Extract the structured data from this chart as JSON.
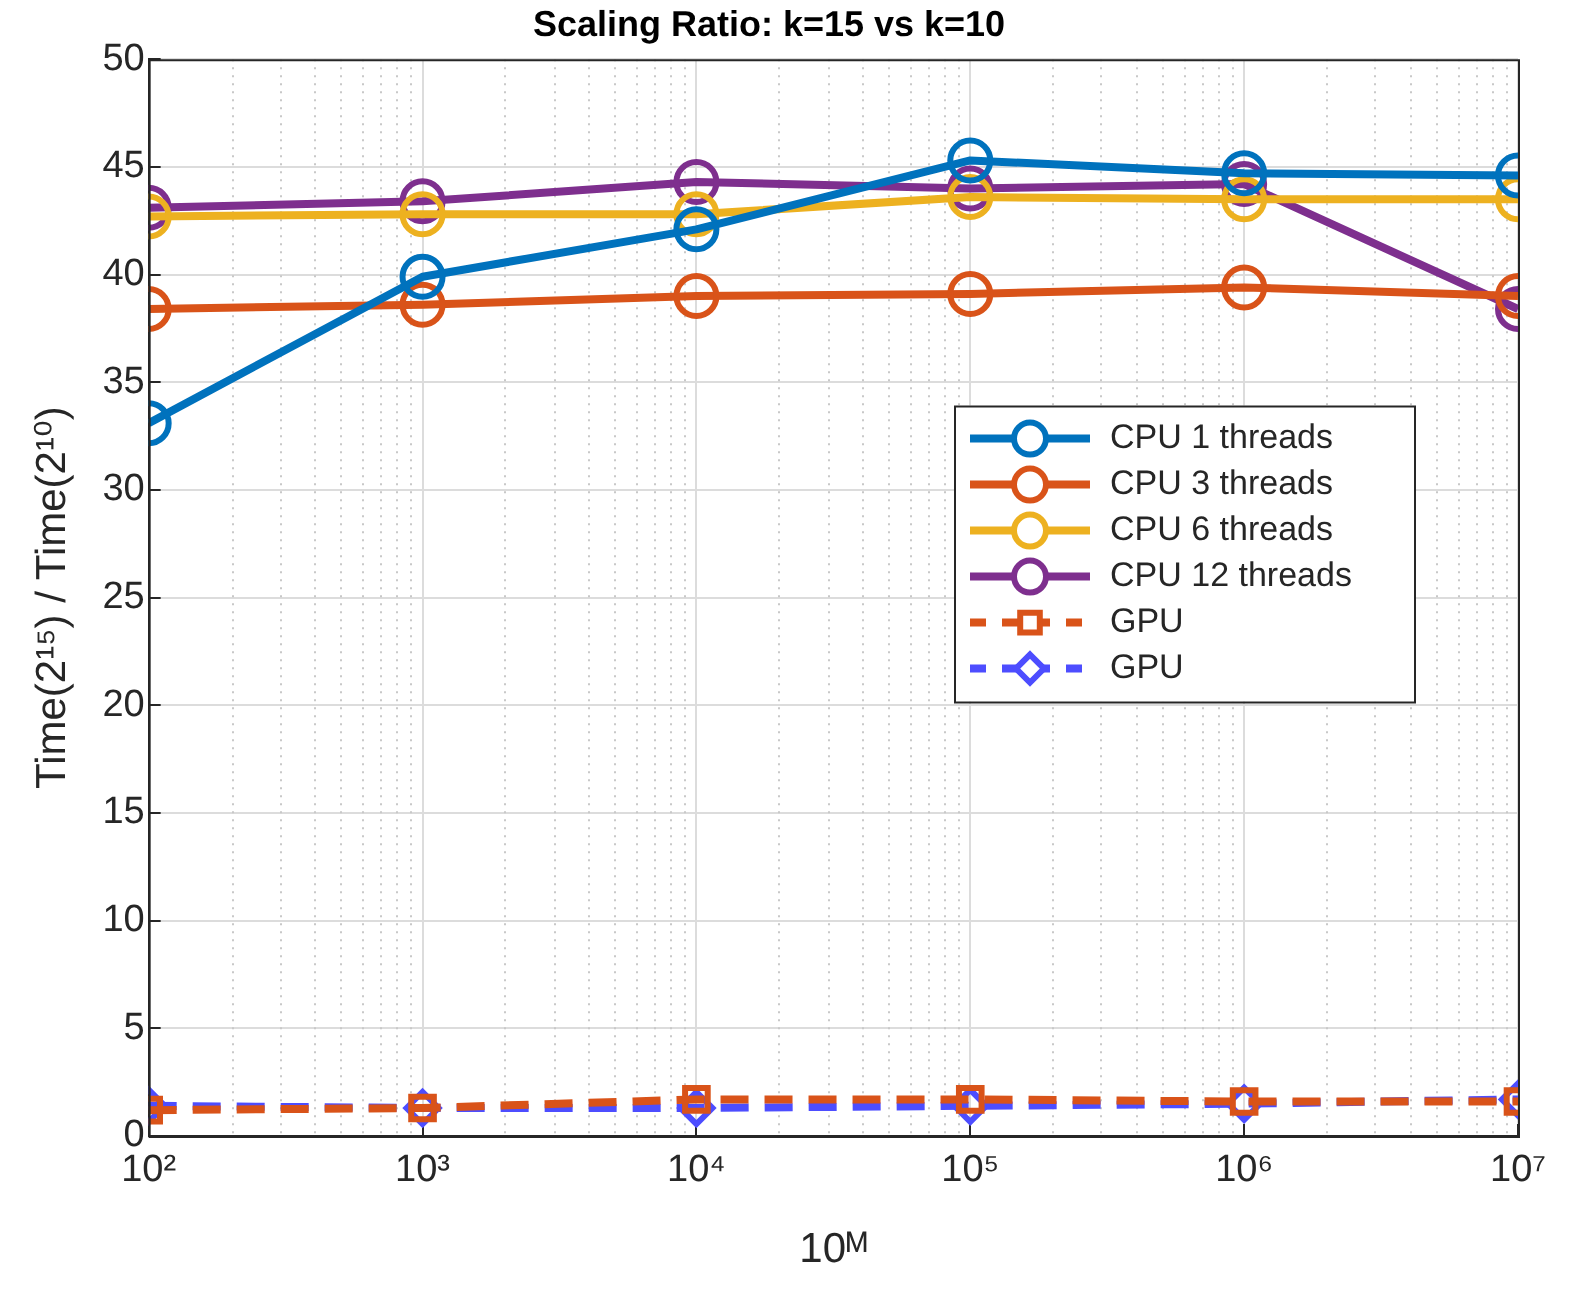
{
  "chart_data": {
    "type": "line",
    "title": "Scaling Ratio: k=15 vs k=10",
    "xlabel": "10ᴹ",
    "ylabel": "Time(2¹⁵) / Time(2¹⁰)",
    "x": [
      100,
      1000,
      10000,
      100000,
      1000000,
      10000000
    ],
    "series": [
      {
        "name": "CPU 1 threads",
        "color": "#0072bd",
        "marker": "circle",
        "line_style": "solid",
        "values": [
          33.1,
          39.9,
          42.1,
          45.3,
          44.7,
          44.6
        ]
      },
      {
        "name": "CPU 3 threads",
        "color": "#d95319",
        "marker": "circle",
        "line_style": "solid",
        "values": [
          38.4,
          38.6,
          39.0,
          39.1,
          39.4,
          39.0
        ]
      },
      {
        "name": "CPU 6 threads",
        "color": "#edb120",
        "marker": "circle",
        "line_style": "solid",
        "values": [
          42.7,
          42.8,
          42.8,
          43.6,
          43.5,
          43.5
        ]
      },
      {
        "name": "CPU 12 threads",
        "color": "#7e2f8e",
        "marker": "circle",
        "line_style": "solid",
        "values": [
          43.1,
          43.4,
          44.3,
          44.0,
          44.2,
          38.4
        ]
      },
      {
        "name": "GPU",
        "color": "#d95319",
        "marker": "square",
        "line_style": "dashed",
        "values": [
          1.2,
          1.3,
          1.7,
          1.7,
          1.6,
          1.6
        ]
      },
      {
        "name": "GPU",
        "color": "#4d4dff",
        "marker": "diamond",
        "line_style": "dashed",
        "values": [
          1.4,
          1.3,
          1.3,
          1.4,
          1.5,
          1.7
        ]
      }
    ],
    "log": "x",
    "xlim": [
      100,
      10000000
    ],
    "xticks": [
      {
        "value": 100,
        "label": "10²"
      },
      {
        "value": 1000,
        "label": "10³"
      },
      {
        "value": 10000,
        "label": "10⁴"
      },
      {
        "value": 100000,
        "label": "10⁵"
      },
      {
        "value": 1000000,
        "label": "10⁶"
      },
      {
        "value": 10000000,
        "label": "10⁷"
      }
    ],
    "ylim": [
      0,
      50
    ],
    "yticks": [
      0,
      5,
      10,
      15,
      20,
      25,
      30,
      35,
      40,
      45,
      50
    ],
    "grid": true,
    "legend": "right"
  }
}
